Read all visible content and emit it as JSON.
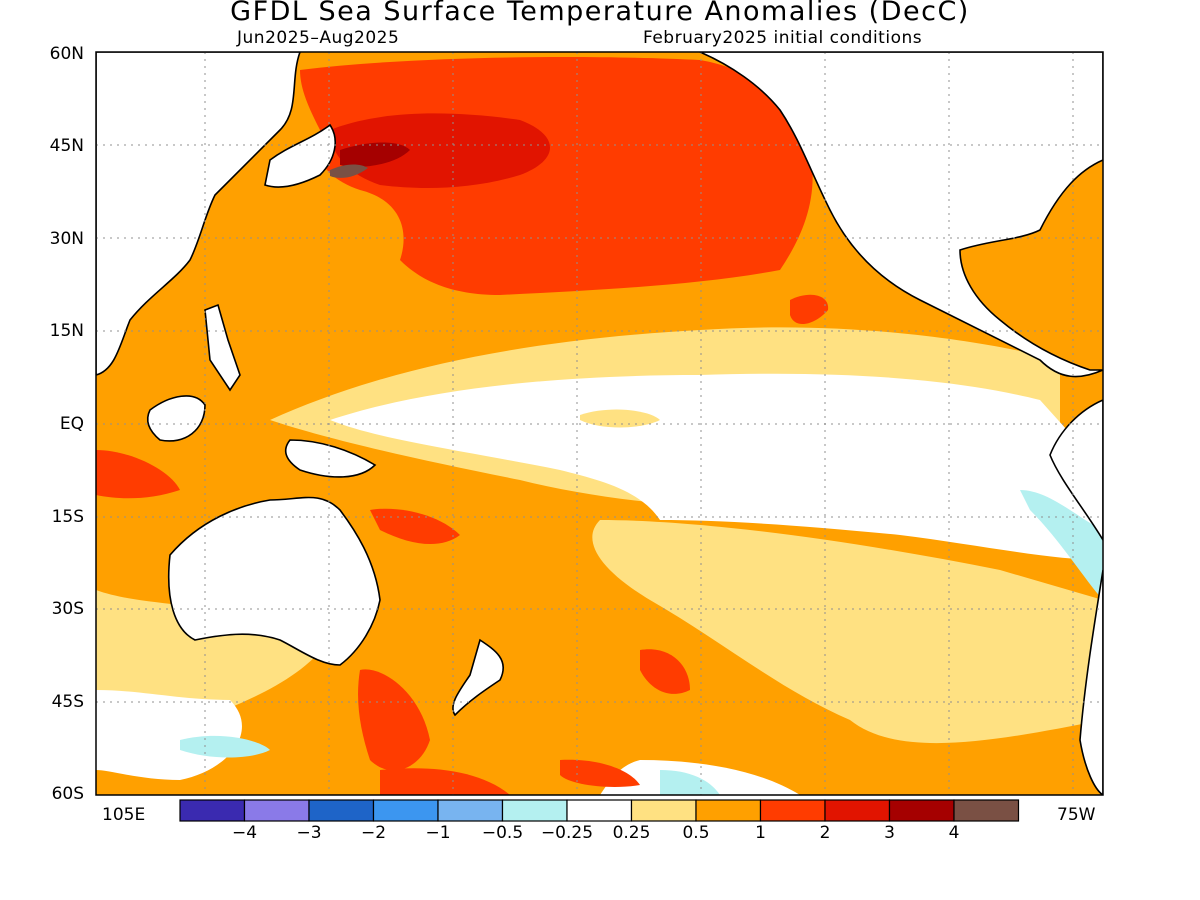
{
  "title": "GFDL Sea Surface Temperature Anomalies (DecC)",
  "subtitle_left": "Jun2025–Aug2025",
  "subtitle_right": "February2025 initial conditions",
  "lat_labels": [
    "60N",
    "45N",
    "30N",
    "15N",
    "EQ",
    "15S",
    "30S",
    "45S",
    "60S"
  ],
  "lon_labels": {
    "west_edge": "105E",
    "east_edge": "75W"
  },
  "colorbar": {
    "labels": [
      "−4",
      "−3",
      "−2",
      "−1",
      "−0.5",
      "−0.25",
      "0.25",
      "0.5",
      "1",
      "2",
      "3",
      "4"
    ],
    "colors": [
      "#3a2ab0",
      "#8a7ae8",
      "#1e64c8",
      "#3c96f0",
      "#78b4f0",
      "#b4f0f0",
      "#ffffff",
      "#ffe182",
      "#ffa000",
      "#ff3c00",
      "#e11400",
      "#a50000",
      "#7a5044"
    ]
  },
  "land_color": "#ffffff",
  "coast_color": "#000000"
}
